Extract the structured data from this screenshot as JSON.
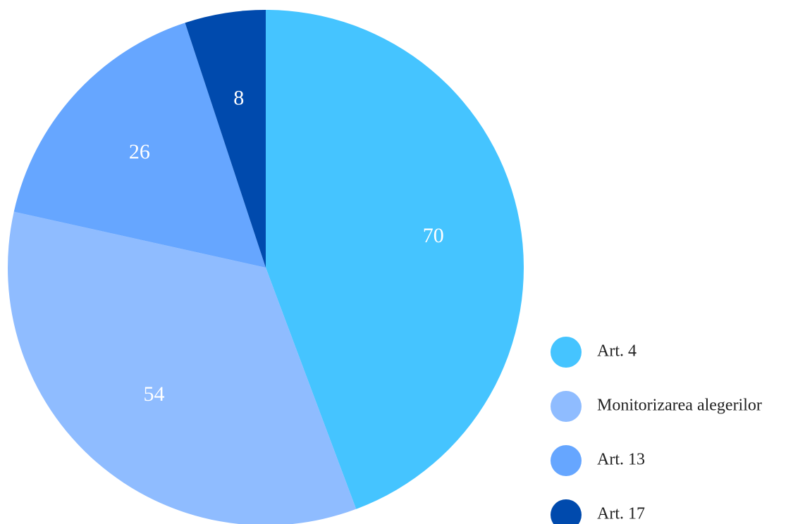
{
  "chart_data": {
    "type": "pie",
    "categories": [
      "Art. 4",
      "Monitorizarea alegerilor",
      "Art. 13",
      "Art. 17"
    ],
    "values": [
      70,
      54,
      26,
      8
    ],
    "colors": [
      "#45c4ff",
      "#8fbcff",
      "#66a6ff",
      "#004aad"
    ],
    "legend": "right"
  }
}
